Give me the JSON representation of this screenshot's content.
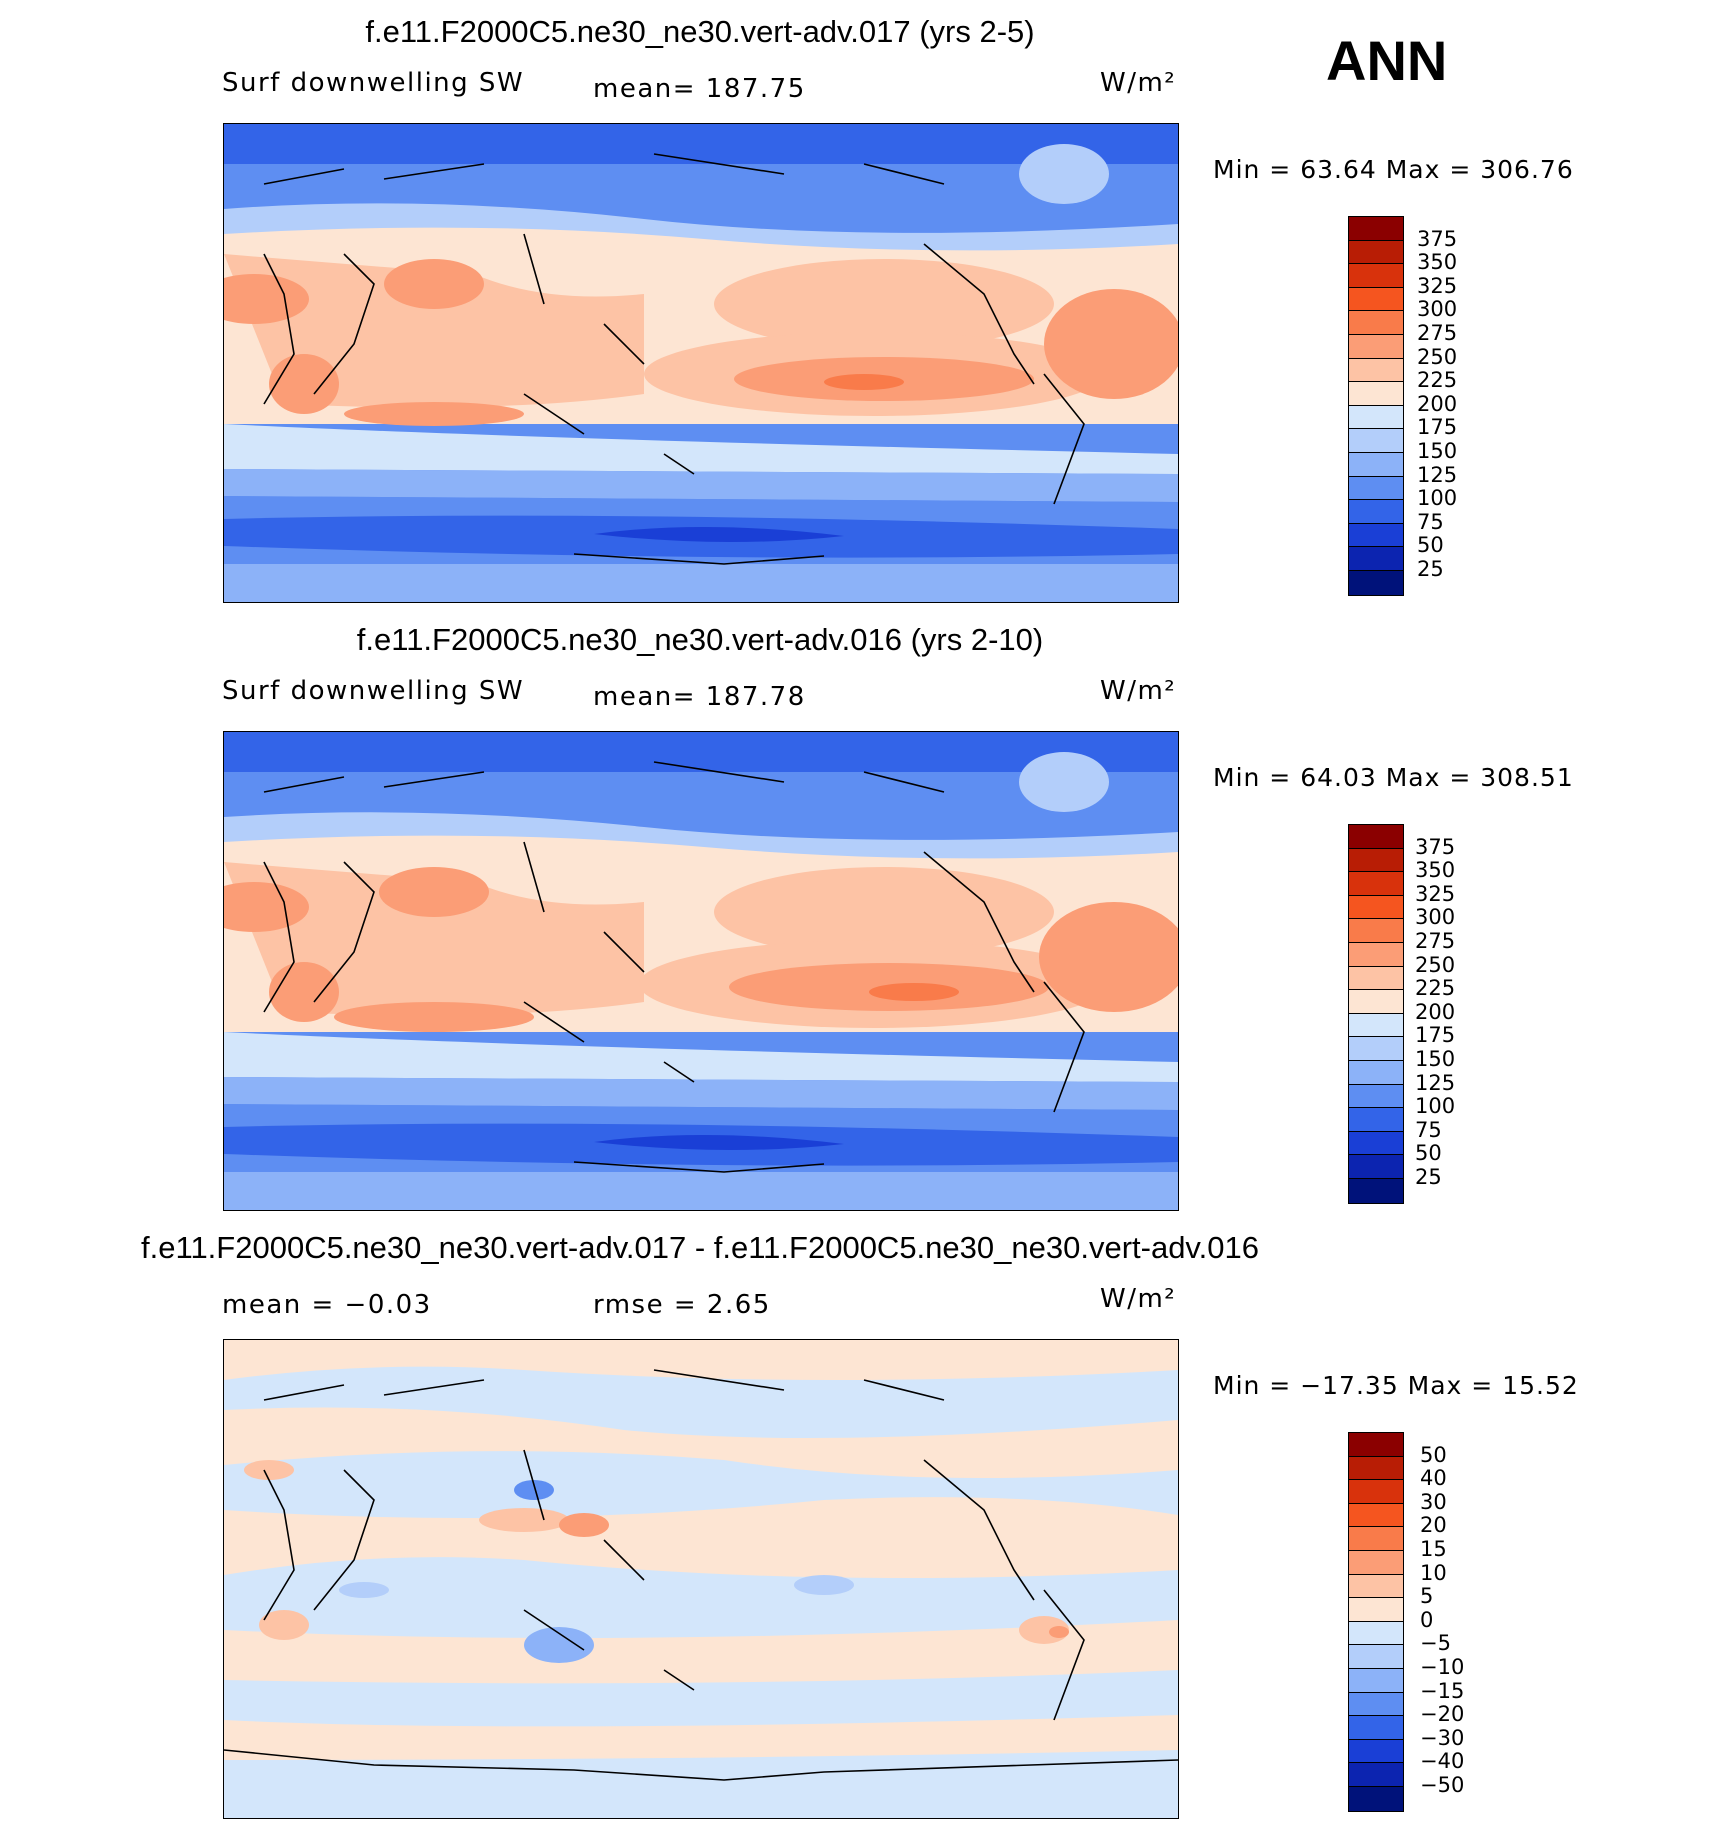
{
  "season": "ANN",
  "panels": [
    {
      "title": "f.e11.F2000C5.ne30_ne30.vert-adv.017 (yrs 2-5)",
      "left_label": "Surf downwelling SW",
      "center_label": "mean= 187.75",
      "units": "W/m²",
      "minmax": "Min =   63.64 Max = 306.76",
      "colorbar_ticks": [
        "375",
        "350",
        "325",
        "300",
        "275",
        "250",
        "225",
        "200",
        "175",
        "150",
        "125",
        "100",
        "75",
        "50",
        "25"
      ],
      "colorbar_colors": [
        "#8b0000",
        "#b81d05",
        "#d8320c",
        "#f5551f",
        "#f97b4a",
        "#fb9d76",
        "#fdc3a5",
        "#fde5d3",
        "#d3e6fb",
        "#b3cefa",
        "#8cb2f8",
        "#5e8ef2",
        "#3364e8",
        "#1a3fd6",
        "#0c24b0",
        "#00127a"
      ]
    },
    {
      "title": "f.e11.F2000C5.ne30_ne30.vert-adv.016 (yrs 2-10)",
      "left_label": "Surf downwelling SW",
      "center_label": "mean= 187.78",
      "units": "W/m²",
      "minmax": "Min =   64.03 Max = 308.51",
      "colorbar_ticks": [
        "375",
        "350",
        "325",
        "300",
        "275",
        "250",
        "225",
        "200",
        "175",
        "150",
        "125",
        "100",
        "75",
        "50",
        "25"
      ],
      "colorbar_colors": [
        "#8b0000",
        "#b81d05",
        "#d8320c",
        "#f5551f",
        "#f97b4a",
        "#fb9d76",
        "#fdc3a5",
        "#fde5d3",
        "#d3e6fb",
        "#b3cefa",
        "#8cb2f8",
        "#5e8ef2",
        "#3364e8",
        "#1a3fd6",
        "#0c24b0",
        "#00127a"
      ]
    },
    {
      "title": "f.e11.F2000C5.ne30_ne30.vert-adv.017 - f.e11.F2000C5.ne30_ne30.vert-adv.016",
      "left_label": "mean =   −0.03",
      "center_label": "rmse =    2.65",
      "units": "W/m²",
      "minmax": "Min = −17.35 Max =   15.52",
      "colorbar_ticks": [
        "50",
        "40",
        "30",
        "20",
        "15",
        "10",
        "5",
        "0",
        "−5",
        "−10",
        "−15",
        "−20",
        "−30",
        "−40",
        "−50"
      ],
      "colorbar_colors": [
        "#8b0000",
        "#b81d05",
        "#d8320c",
        "#f5551f",
        "#f97b4a",
        "#fb9d76",
        "#fdc3a5",
        "#fde5d3",
        "#d3e6fb",
        "#b3cefa",
        "#8cb2f8",
        "#5e8ef2",
        "#3364e8",
        "#1a3fd6",
        "#0c24b0",
        "#00127a"
      ]
    }
  ],
  "map_palette": {
    "deep_blue": "#1a3fd6",
    "blue": "#3364e8",
    "mid_blue": "#5e8ef2",
    "light_blue": "#b3cefa",
    "pale_blue": "#d3e6fb",
    "cream": "#fde5d3",
    "peach": "#fdc3a5",
    "salmon": "#fb9d76",
    "orange": "#f97b4a"
  }
}
